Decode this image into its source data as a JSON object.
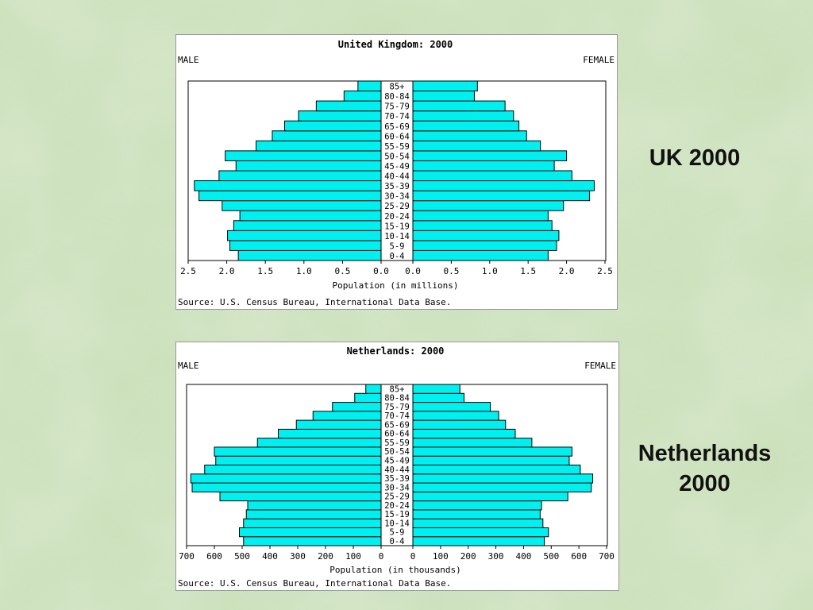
{
  "slide": {
    "label_uk": "UK 2000",
    "label_nl_line1": "Netherlands",
    "label_nl_line2": "2000"
  },
  "colors": {
    "bar_fill": "#00f0f0",
    "bar_stroke": "#000000",
    "panel_bg": "#ffffff",
    "background": "#c9dfb8"
  },
  "chart_data": [
    {
      "type": "bar",
      "orientation": "population-pyramid",
      "title": "United Kingdom: 2000",
      "left_label": "MALE",
      "right_label": "FEMALE",
      "xlabel": "Population (in millions)",
      "source": "Source: U.S. Census Bureau, International Data Base.",
      "categories": [
        "0-4",
        "5-9",
        "10-14",
        "15-19",
        "20-24",
        "25-29",
        "30-34",
        "35-39",
        "40-44",
        "45-49",
        "50-54",
        "55-59",
        "60-64",
        "65-69",
        "70-74",
        "75-79",
        "80-84",
        "85+"
      ],
      "series": [
        {
          "name": "MALE",
          "values": [
            1.85,
            1.96,
            1.99,
            1.91,
            1.83,
            2.06,
            2.36,
            2.42,
            2.1,
            1.88,
            2.02,
            1.62,
            1.41,
            1.25,
            1.07,
            0.84,
            0.48,
            0.3
          ]
        },
        {
          "name": "FEMALE",
          "values": [
            1.76,
            1.87,
            1.9,
            1.81,
            1.76,
            1.96,
            2.3,
            2.36,
            2.07,
            1.84,
            2.0,
            1.66,
            1.48,
            1.38,
            1.31,
            1.2,
            0.8,
            0.84
          ]
        }
      ],
      "xlim": [
        0,
        2.5
      ],
      "ticks_left": [
        "2.5",
        "2.0",
        "1.5",
        "1.0",
        "0.5",
        "0.0"
      ],
      "ticks_right": [
        "0.0",
        "0.5",
        "1.0",
        "1.5",
        "2.0",
        "2.5"
      ],
      "tick_values": [
        0,
        0.5,
        1.0,
        1.5,
        2.0,
        2.5
      ]
    },
    {
      "type": "bar",
      "orientation": "population-pyramid",
      "title": "Netherlands: 2000",
      "left_label": "MALE",
      "right_label": "FEMALE",
      "xlabel": "Population (in thousands)",
      "source": "Source: U.S. Census Bureau, International Data Base.",
      "categories": [
        "0-4",
        "5-9",
        "10-14",
        "15-19",
        "20-24",
        "25-29",
        "30-34",
        "35-39",
        "40-44",
        "45-49",
        "50-54",
        "55-59",
        "60-64",
        "65-69",
        "70-74",
        "75-79",
        "80-84",
        "85+"
      ],
      "series": [
        {
          "name": "MALE",
          "values": [
            495,
            510,
            495,
            485,
            480,
            580,
            680,
            685,
            635,
            595,
            600,
            445,
            370,
            305,
            245,
            175,
            95,
            55
          ]
        },
        {
          "name": "FEMALE",
          "values": [
            475,
            490,
            470,
            460,
            465,
            560,
            645,
            650,
            605,
            565,
            575,
            430,
            370,
            335,
            310,
            280,
            185,
            170
          ]
        }
      ],
      "xlim": [
        0,
        700
      ],
      "ticks_left": [
        "700",
        "600",
        "500",
        "400",
        "300",
        "200",
        "100",
        "0"
      ],
      "ticks_right": [
        "0",
        "100",
        "200",
        "300",
        "400",
        "500",
        "600",
        "700"
      ],
      "tick_values": [
        0,
        100,
        200,
        300,
        400,
        500,
        600,
        700
      ]
    }
  ]
}
